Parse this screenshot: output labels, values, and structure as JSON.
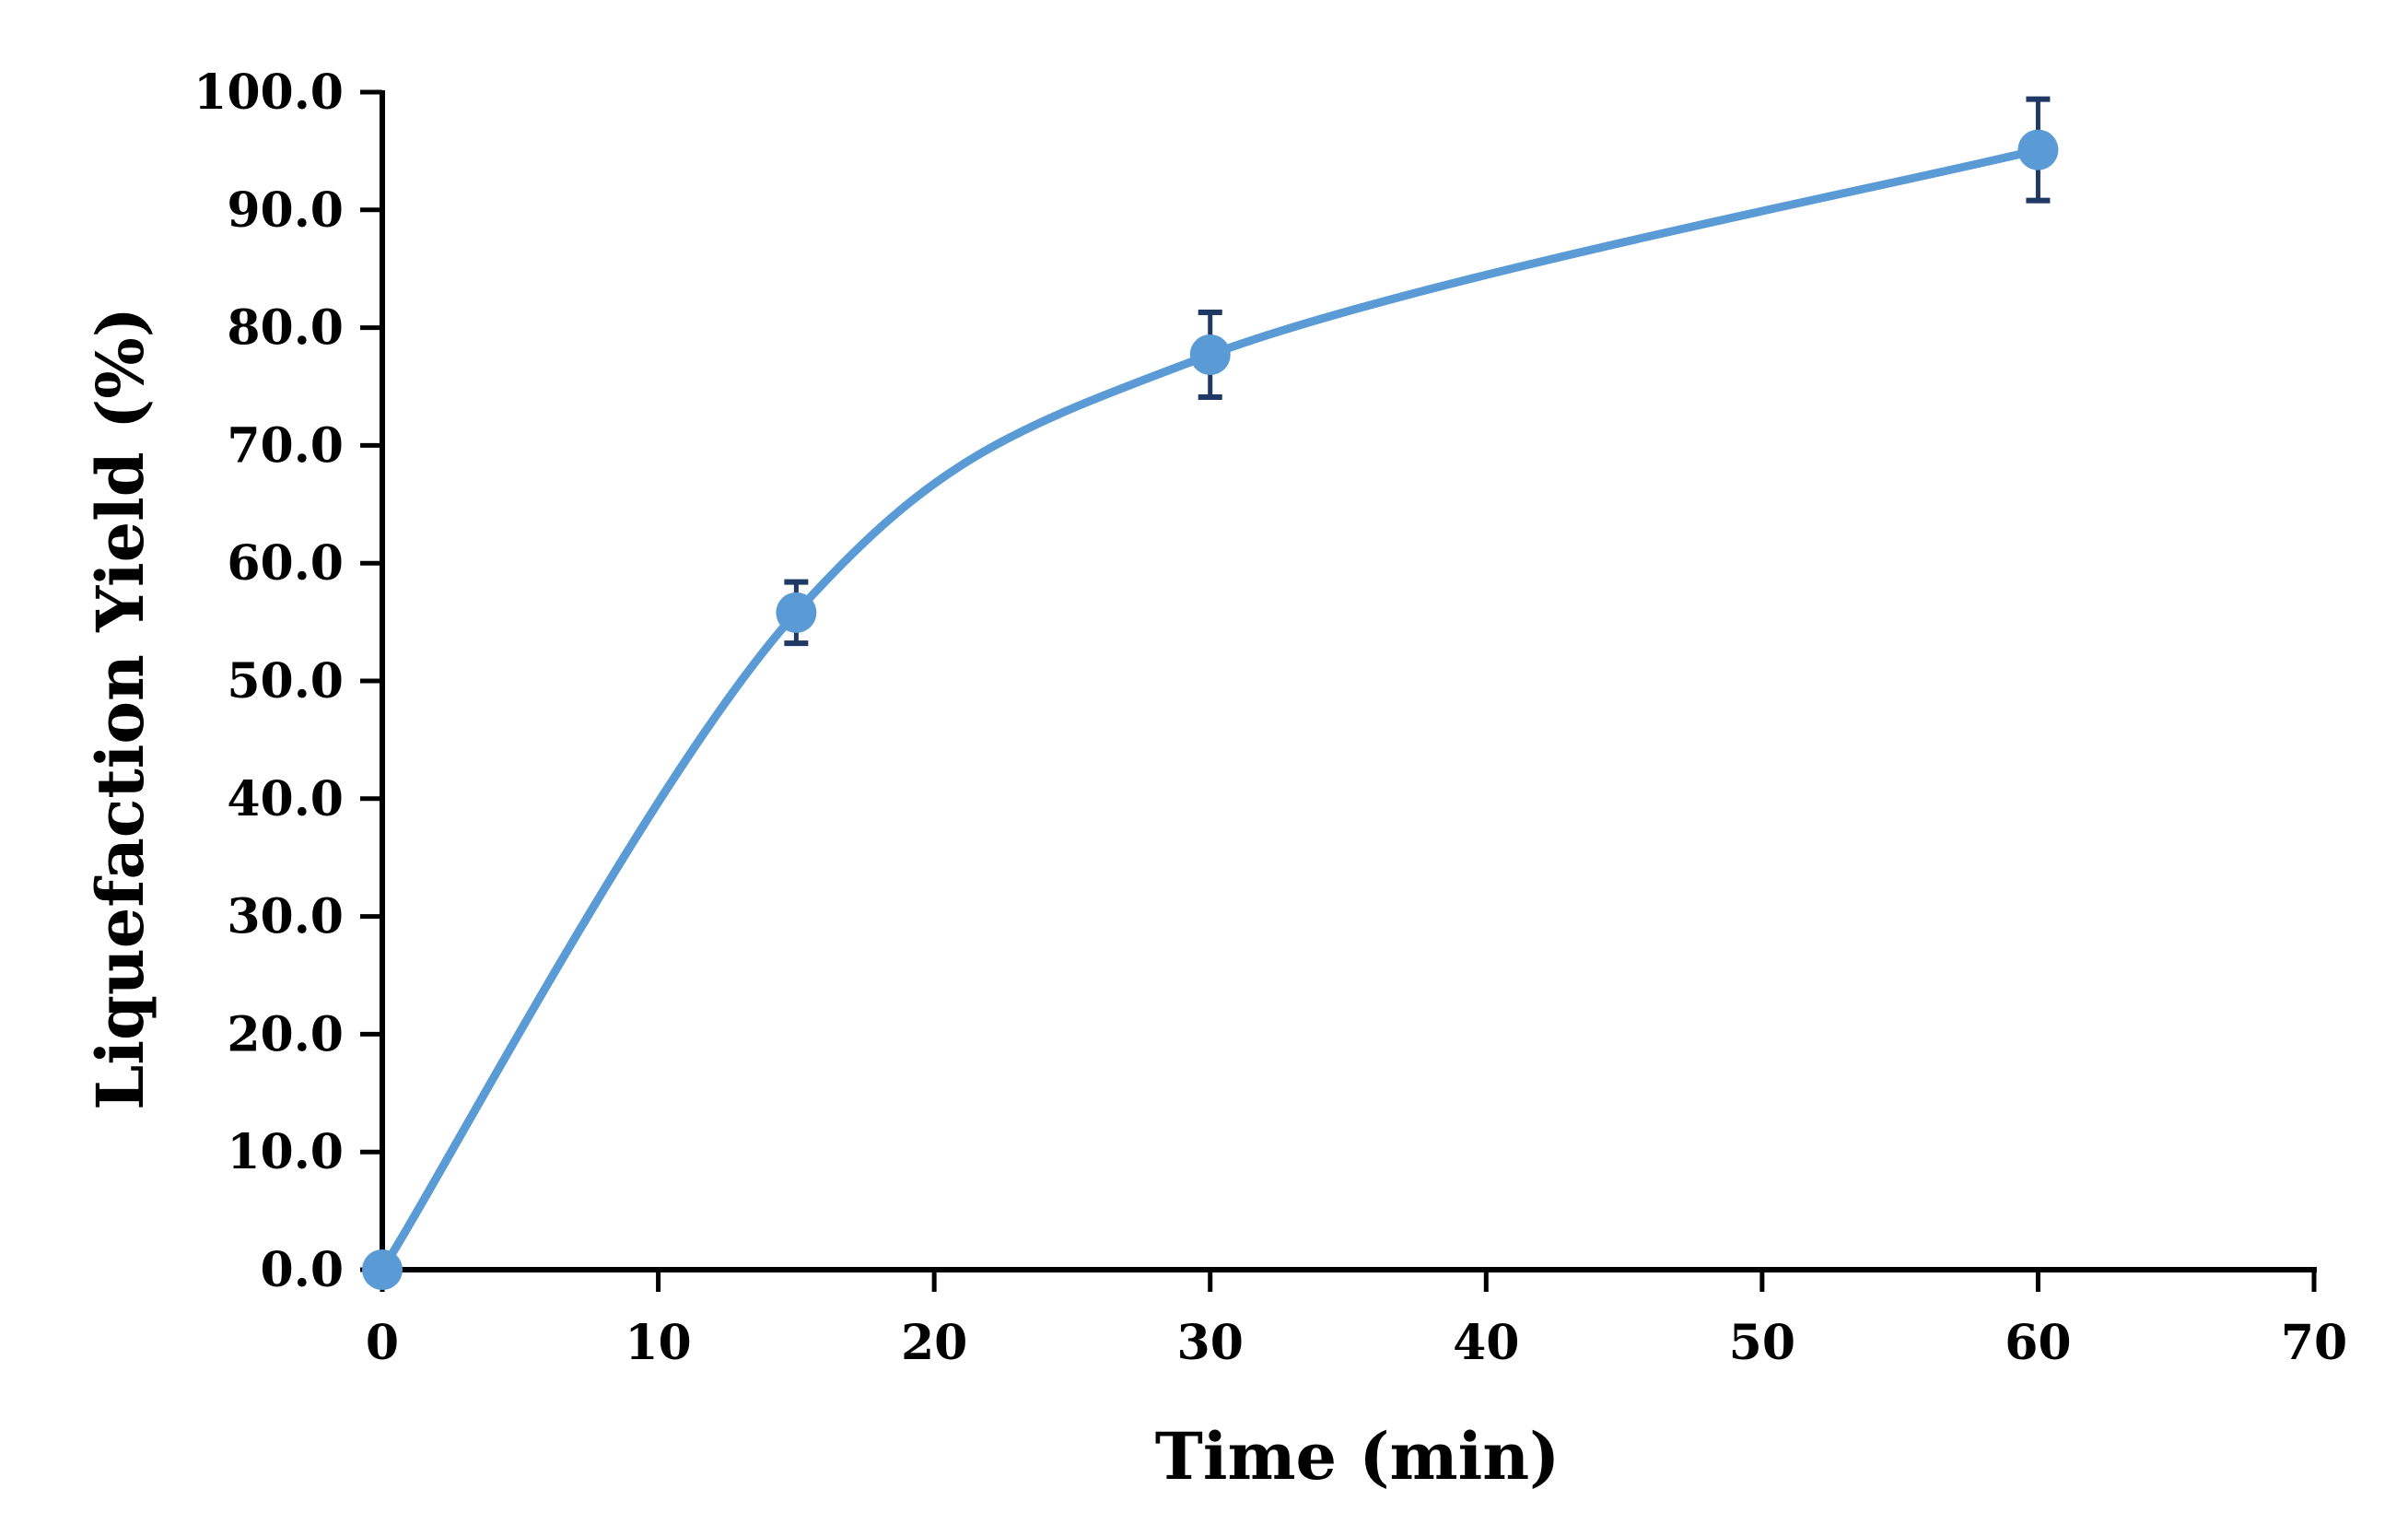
{
  "chart_data": {
    "type": "scatter",
    "xlabel": "Time (min)",
    "ylabel": "Liquefaction Yield (%)",
    "xlim": [
      0,
      70
    ],
    "ylim": [
      0,
      100
    ],
    "x_ticks": [
      0,
      10,
      20,
      30,
      40,
      50,
      60,
      70
    ],
    "x_tick_labels": [
      "0",
      "10",
      "20",
      "30",
      "40",
      "50",
      "60",
      "70"
    ],
    "y_ticks": [
      0,
      10,
      20,
      30,
      40,
      50,
      60,
      70,
      80,
      90,
      100
    ],
    "y_tick_labels": [
      "0.0",
      "10.0",
      "20.0",
      "30.0",
      "40.0",
      "50.0",
      "60.0",
      "70.0",
      "80.0",
      "90.0",
      "100.0"
    ],
    "grid": false,
    "series": [
      {
        "x": [
          0,
          15,
          30,
          60
        ],
        "y": [
          0.0,
          55.8,
          77.7,
          95.1
        ],
        "error": [
          0.0,
          2.6,
          3.6,
          4.3
        ],
        "line": "smoothed",
        "color": "#5b9bd5",
        "errorbar_color": "#1f3864"
      }
    ]
  }
}
